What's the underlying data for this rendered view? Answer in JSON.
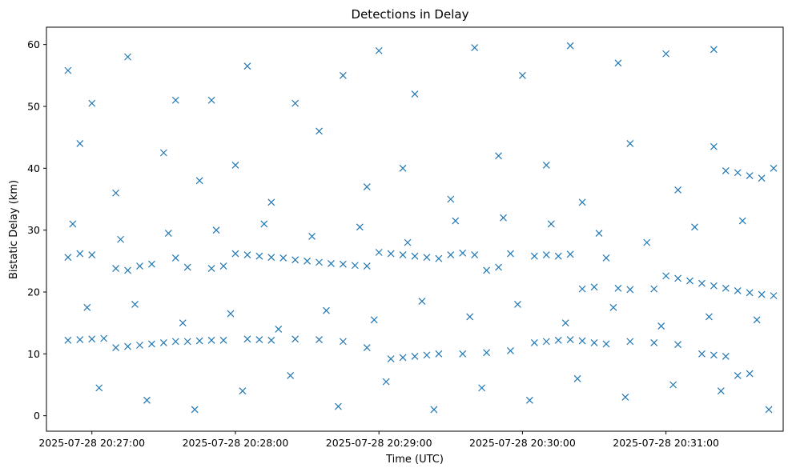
{
  "chart_data": {
    "type": "scatter",
    "title": "Detections in Delay",
    "xlabel": "Time (UTC)",
    "ylabel": "Bistatic Delay (km)",
    "marker": "x",
    "marker_color": "#1f77b4",
    "x_is_time": true,
    "xlim": [
      "2025-07-28 20:26:41",
      "2025-07-28 20:31:49"
    ],
    "ylim": [
      -2.5,
      62.8
    ],
    "xticks": [
      "2025-07-28 20:27:00",
      "2025-07-28 20:28:00",
      "2025-07-28 20:29:00",
      "2025-07-28 20:30:00",
      "2025-07-28 20:31:00"
    ],
    "yticks": [
      0,
      10,
      20,
      30,
      40,
      50,
      60
    ],
    "grid": false,
    "legend": "none",
    "points_note": "Approximate detections: dense near 12 km and 24-27 km throughout, plus a descending track from ~22 km to ~19 km in the final 40 s and a scattered background from 0 to 60 km.",
    "points": [
      [
        "2025-07-28 20:26:50",
        12.2
      ],
      [
        "2025-07-28 20:26:55",
        12.3
      ],
      [
        "2025-07-28 20:27:00",
        12.4
      ],
      [
        "2025-07-28 20:27:05",
        12.5
      ],
      [
        "2025-07-28 20:27:10",
        11.0
      ],
      [
        "2025-07-28 20:27:15",
        11.2
      ],
      [
        "2025-07-28 20:27:20",
        11.4
      ],
      [
        "2025-07-28 20:27:25",
        11.6
      ],
      [
        "2025-07-28 20:27:30",
        11.8
      ],
      [
        "2025-07-28 20:27:35",
        12.0
      ],
      [
        "2025-07-28 20:27:40",
        12.0
      ],
      [
        "2025-07-28 20:27:45",
        12.1
      ],
      [
        "2025-07-28 20:27:50",
        12.2
      ],
      [
        "2025-07-28 20:27:55",
        12.2
      ],
      [
        "2025-07-28 20:28:05",
        12.4
      ],
      [
        "2025-07-28 20:28:10",
        12.3
      ],
      [
        "2025-07-28 20:28:15",
        12.2
      ],
      [
        "2025-07-28 20:28:25",
        12.4
      ],
      [
        "2025-07-28 20:28:35",
        12.3
      ],
      [
        "2025-07-28 20:28:45",
        12.0
      ],
      [
        "2025-07-28 20:28:55",
        11.0
      ],
      [
        "2025-07-28 20:29:05",
        9.2
      ],
      [
        "2025-07-28 20:29:10",
        9.4
      ],
      [
        "2025-07-28 20:29:15",
        9.6
      ],
      [
        "2025-07-28 20:29:20",
        9.8
      ],
      [
        "2025-07-28 20:29:25",
        10.0
      ],
      [
        "2025-07-28 20:29:35",
        10.0
      ],
      [
        "2025-07-28 20:29:45",
        10.2
      ],
      [
        "2025-07-28 20:29:55",
        10.5
      ],
      [
        "2025-07-28 20:30:05",
        11.8
      ],
      [
        "2025-07-28 20:30:10",
        12.0
      ],
      [
        "2025-07-28 20:30:15",
        12.2
      ],
      [
        "2025-07-28 20:30:20",
        12.3
      ],
      [
        "2025-07-28 20:30:25",
        12.1
      ],
      [
        "2025-07-28 20:30:30",
        11.8
      ],
      [
        "2025-07-28 20:30:35",
        11.6
      ],
      [
        "2025-07-28 20:30:45",
        12.0
      ],
      [
        "2025-07-28 20:30:55",
        11.8
      ],
      [
        "2025-07-28 20:31:05",
        11.5
      ],
      [
        "2025-07-28 20:31:15",
        10.0
      ],
      [
        "2025-07-28 20:31:20",
        9.8
      ],
      [
        "2025-07-28 20:31:25",
        9.6
      ],
      [
        "2025-07-28 20:31:30",
        6.5
      ],
      [
        "2025-07-28 20:31:35",
        6.8
      ],
      [
        "2025-07-28 20:26:50",
        25.6
      ],
      [
        "2025-07-28 20:26:55",
        26.2
      ],
      [
        "2025-07-28 20:27:00",
        26.0
      ],
      [
        "2025-07-28 20:27:10",
        23.8
      ],
      [
        "2025-07-28 20:27:15",
        23.5
      ],
      [
        "2025-07-28 20:27:20",
        24.2
      ],
      [
        "2025-07-28 20:27:25",
        24.5
      ],
      [
        "2025-07-28 20:27:35",
        25.5
      ],
      [
        "2025-07-28 20:27:40",
        24.0
      ],
      [
        "2025-07-28 20:27:50",
        23.8
      ],
      [
        "2025-07-28 20:27:55",
        24.2
      ],
      [
        "2025-07-28 20:28:00",
        26.2
      ],
      [
        "2025-07-28 20:28:05",
        26.0
      ],
      [
        "2025-07-28 20:28:10",
        25.8
      ],
      [
        "2025-07-28 20:28:15",
        25.6
      ],
      [
        "2025-07-28 20:28:20",
        25.5
      ],
      [
        "2025-07-28 20:28:25",
        25.2
      ],
      [
        "2025-07-28 20:28:30",
        25.0
      ],
      [
        "2025-07-28 20:28:35",
        24.8
      ],
      [
        "2025-07-28 20:28:40",
        24.6
      ],
      [
        "2025-07-28 20:28:45",
        24.5
      ],
      [
        "2025-07-28 20:28:50",
        24.3
      ],
      [
        "2025-07-28 20:28:55",
        24.2
      ],
      [
        "2025-07-28 20:29:00",
        26.4
      ],
      [
        "2025-07-28 20:29:05",
        26.2
      ],
      [
        "2025-07-28 20:29:10",
        26.0
      ],
      [
        "2025-07-28 20:29:15",
        25.8
      ],
      [
        "2025-07-28 20:29:20",
        25.6
      ],
      [
        "2025-07-28 20:29:25",
        25.4
      ],
      [
        "2025-07-28 20:29:30",
        26.0
      ],
      [
        "2025-07-28 20:29:35",
        26.3
      ],
      [
        "2025-07-28 20:29:40",
        26.0
      ],
      [
        "2025-07-28 20:29:45",
        23.5
      ],
      [
        "2025-07-28 20:29:50",
        24.0
      ],
      [
        "2025-07-28 20:29:55",
        26.2
      ],
      [
        "2025-07-28 20:30:05",
        25.8
      ],
      [
        "2025-07-28 20:30:10",
        26.0
      ],
      [
        "2025-07-28 20:30:15",
        25.8
      ],
      [
        "2025-07-28 20:30:20",
        26.1
      ],
      [
        "2025-07-28 20:30:25",
        20.5
      ],
      [
        "2025-07-28 20:30:30",
        20.8
      ],
      [
        "2025-07-28 20:30:35",
        25.5
      ],
      [
        "2025-07-28 20:30:40",
        20.6
      ],
      [
        "2025-07-28 20:30:45",
        20.4
      ],
      [
        "2025-07-28 20:30:55",
        20.5
      ],
      [
        "2025-07-28 20:31:00",
        22.6
      ],
      [
        "2025-07-28 20:31:05",
        22.2
      ],
      [
        "2025-07-28 20:31:10",
        21.8
      ],
      [
        "2025-07-28 20:31:15",
        21.4
      ],
      [
        "2025-07-28 20:31:20",
        21.0
      ],
      [
        "2025-07-28 20:31:25",
        20.6
      ],
      [
        "2025-07-28 20:31:30",
        20.2
      ],
      [
        "2025-07-28 20:31:35",
        19.9
      ],
      [
        "2025-07-28 20:31:40",
        19.6
      ],
      [
        "2025-07-28 20:31:45",
        19.4
      ],
      [
        "2025-07-28 20:31:35",
        38.8
      ],
      [
        "2025-07-28 20:31:30",
        39.3
      ],
      [
        "2025-07-28 20:31:25",
        39.6
      ],
      [
        "2025-07-28 20:31:40",
        38.4
      ],
      [
        "2025-07-28 20:31:45",
        40.0
      ],
      [
        "2025-07-28 20:26:50",
        55.8
      ],
      [
        "2025-07-28 20:27:00",
        50.5
      ],
      [
        "2025-07-28 20:27:15",
        58.0
      ],
      [
        "2025-07-28 20:27:35",
        51.0
      ],
      [
        "2025-07-28 20:27:50",
        51.0
      ],
      [
        "2025-07-28 20:28:05",
        56.5
      ],
      [
        "2025-07-28 20:28:25",
        50.5
      ],
      [
        "2025-07-28 20:28:45",
        55.0
      ],
      [
        "2025-07-28 20:29:00",
        59.0
      ],
      [
        "2025-07-28 20:29:15",
        52.0
      ],
      [
        "2025-07-28 20:29:40",
        59.5
      ],
      [
        "2025-07-28 20:30:00",
        55.0
      ],
      [
        "2025-07-28 20:30:20",
        59.8
      ],
      [
        "2025-07-28 20:30:40",
        57.0
      ],
      [
        "2025-07-28 20:31:00",
        58.5
      ],
      [
        "2025-07-28 20:31:20",
        59.2
      ],
      [
        "2025-07-28 20:26:55",
        44.0
      ],
      [
        "2025-07-28 20:27:10",
        36.0
      ],
      [
        "2025-07-28 20:27:30",
        42.5
      ],
      [
        "2025-07-28 20:27:45",
        38.0
      ],
      [
        "2025-07-28 20:28:00",
        40.5
      ],
      [
        "2025-07-28 20:28:15",
        34.5
      ],
      [
        "2025-07-28 20:28:35",
        46.0
      ],
      [
        "2025-07-28 20:28:55",
        37.0
      ],
      [
        "2025-07-28 20:29:10",
        40.0
      ],
      [
        "2025-07-28 20:29:30",
        35.0
      ],
      [
        "2025-07-28 20:29:50",
        42.0
      ],
      [
        "2025-07-28 20:30:10",
        40.5
      ],
      [
        "2025-07-28 20:30:25",
        34.5
      ],
      [
        "2025-07-28 20:30:45",
        44.0
      ],
      [
        "2025-07-28 20:31:05",
        36.5
      ],
      [
        "2025-07-28 20:31:20",
        43.5
      ],
      [
        "2025-07-28 20:26:52",
        31.0
      ],
      [
        "2025-07-28 20:27:12",
        28.5
      ],
      [
        "2025-07-28 20:27:32",
        29.5
      ],
      [
        "2025-07-28 20:27:52",
        30.0
      ],
      [
        "2025-07-28 20:28:12",
        31.0
      ],
      [
        "2025-07-28 20:28:32",
        29.0
      ],
      [
        "2025-07-28 20:28:52",
        30.5
      ],
      [
        "2025-07-28 20:29:12",
        28.0
      ],
      [
        "2025-07-28 20:29:32",
        31.5
      ],
      [
        "2025-07-28 20:29:52",
        32.0
      ],
      [
        "2025-07-28 20:30:12",
        31.0
      ],
      [
        "2025-07-28 20:30:32",
        29.5
      ],
      [
        "2025-07-28 20:30:52",
        28.0
      ],
      [
        "2025-07-28 20:31:12",
        30.5
      ],
      [
        "2025-07-28 20:31:32",
        31.5
      ],
      [
        "2025-07-28 20:26:58",
        17.5
      ],
      [
        "2025-07-28 20:27:18",
        18.0
      ],
      [
        "2025-07-28 20:27:38",
        15.0
      ],
      [
        "2025-07-28 20:27:58",
        16.5
      ],
      [
        "2025-07-28 20:28:18",
        14.0
      ],
      [
        "2025-07-28 20:28:38",
        17.0
      ],
      [
        "2025-07-28 20:28:58",
        15.5
      ],
      [
        "2025-07-28 20:29:18",
        18.5
      ],
      [
        "2025-07-28 20:29:38",
        16.0
      ],
      [
        "2025-07-28 20:29:58",
        18.0
      ],
      [
        "2025-07-28 20:30:18",
        15.0
      ],
      [
        "2025-07-28 20:30:38",
        17.5
      ],
      [
        "2025-07-28 20:30:58",
        14.5
      ],
      [
        "2025-07-28 20:31:18",
        16.0
      ],
      [
        "2025-07-28 20:31:38",
        15.5
      ],
      [
        "2025-07-28 20:27:03",
        4.5
      ],
      [
        "2025-07-28 20:27:23",
        2.5
      ],
      [
        "2025-07-28 20:27:43",
        1.0
      ],
      [
        "2025-07-28 20:28:03",
        4.0
      ],
      [
        "2025-07-28 20:28:23",
        6.5
      ],
      [
        "2025-07-28 20:28:43",
        1.5
      ],
      [
        "2025-07-28 20:29:03",
        5.5
      ],
      [
        "2025-07-28 20:29:23",
        1.0
      ],
      [
        "2025-07-28 20:29:43",
        4.5
      ],
      [
        "2025-07-28 20:30:03",
        2.5
      ],
      [
        "2025-07-28 20:30:23",
        6.0
      ],
      [
        "2025-07-28 20:30:43",
        3.0
      ],
      [
        "2025-07-28 20:31:03",
        5.0
      ],
      [
        "2025-07-28 20:31:23",
        4.0
      ],
      [
        "2025-07-28 20:31:43",
        1.0
      ]
    ]
  }
}
